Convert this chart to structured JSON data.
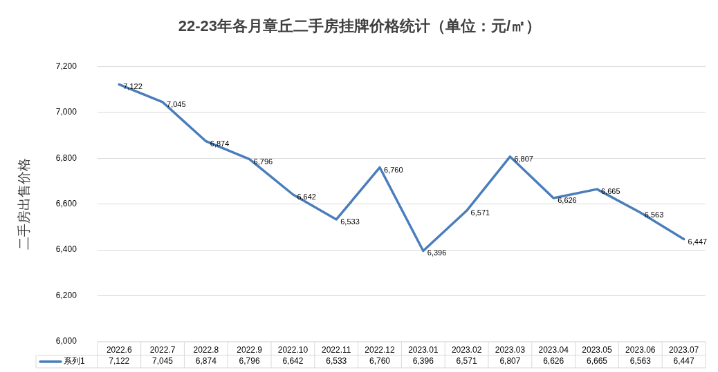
{
  "chart_data": {
    "type": "line",
    "title": "22-23年各月章丘二手房挂牌价格统计（单位：元/㎡）",
    "ylabel": "二手房出售价格",
    "categories": [
      "2022.6",
      "2022.7",
      "2022.8",
      "2022.9",
      "2022.10",
      "2022.11",
      "2022.12",
      "2023.01",
      "2023.02",
      "2023.03",
      "2023.04",
      "2023.05",
      "2023.06",
      "2023.07"
    ],
    "series": [
      {
        "name": "系列1",
        "color": "#4a7ebb",
        "values": [
          7122,
          7045,
          6874,
          6796,
          6642,
          6533,
          6760,
          6396,
          6571,
          6807,
          6626,
          6665,
          6563,
          6447
        ],
        "value_labels": [
          "7,122",
          "7,045",
          "6,874",
          "6,796",
          "6,642",
          "6,533",
          "6,760",
          "6,396",
          "6,571",
          "6,807",
          "6,626",
          "6,665",
          "6,563",
          "6,447"
        ]
      }
    ],
    "ylim": [
      6000,
      7200
    ],
    "yticks": [
      {
        "value": 6000,
        "label": "6,000"
      },
      {
        "value": 6200,
        "label": "6,200"
      },
      {
        "value": 6400,
        "label": "6,400"
      },
      {
        "value": 6600,
        "label": "6,600"
      },
      {
        "value": 6800,
        "label": "6,800"
      },
      {
        "value": 7000,
        "label": "7,000"
      },
      {
        "value": 7200,
        "label": "7,200"
      }
    ],
    "grid": "y",
    "legend": "bottom",
    "marker": "none",
    "line_style": "solid"
  }
}
